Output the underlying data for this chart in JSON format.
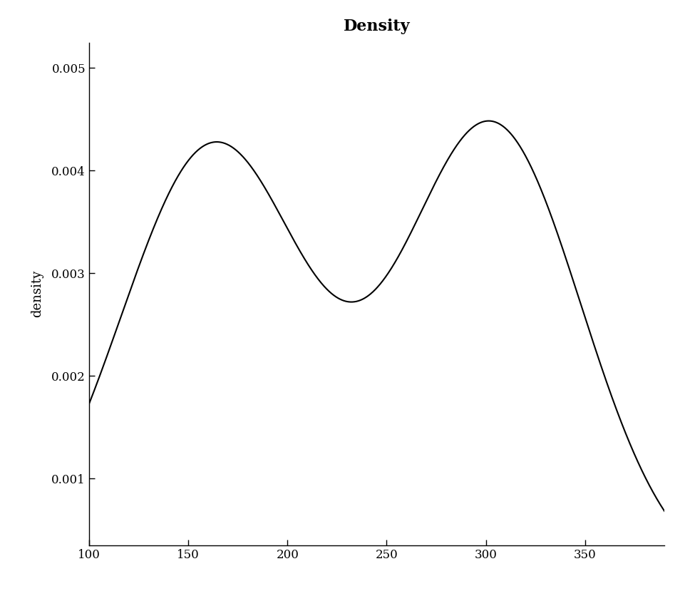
{
  "title": "Density",
  "ylabel": "density",
  "xlabel": "",
  "xlim": [
    100,
    390
  ],
  "ylim": [
    0.00035,
    0.00525
  ],
  "xticks": [
    100,
    150,
    200,
    250,
    300,
    350
  ],
  "yticks": [
    0.001,
    0.002,
    0.003,
    0.004,
    0.005
  ],
  "ytick_labels": [
    "0.001",
    "0.002",
    "0.003",
    "0.004",
    "0.005"
  ],
  "mixture": {
    "pi1": 0.5,
    "mu1": 163,
    "sigma1": 47,
    "pi2": 0.5,
    "mu2": 303,
    "sigma2": 45
  },
  "line_color": "#000000",
  "line_width": 1.5,
  "background_color": "#ffffff",
  "title_fontsize": 16,
  "title_bold": true,
  "axis_fontsize": 13,
  "tick_fontsize": 12
}
